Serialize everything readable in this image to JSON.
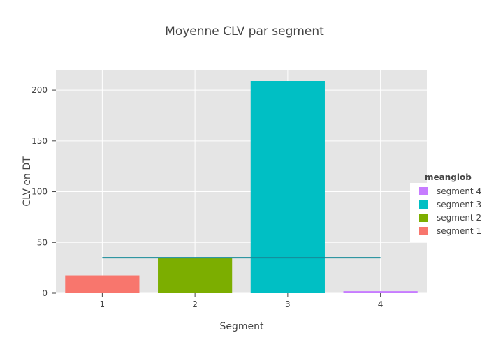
{
  "chart_data": {
    "type": "bar",
    "title": "Moyenne CLV par segment",
    "xlabel": "Segment",
    "ylabel": "CLV en DT",
    "categories": [
      "1",
      "2",
      "3",
      "4"
    ],
    "yticks": [
      "0",
      "50",
      "100",
      "150",
      "200"
    ],
    "ylim": [
      0,
      220
    ],
    "grid": true,
    "series": [
      {
        "name": "segment 1",
        "category": "1",
        "value": 17.5,
        "color": "#F8766D"
      },
      {
        "name": "segment 2",
        "category": "2",
        "value": 35,
        "color": "#7CAE00"
      },
      {
        "name": "segment 3",
        "category": "3",
        "value": 209,
        "color": "#00BFC4"
      },
      {
        "name": "segment 4",
        "category": "4",
        "value": 2,
        "color": "#C77CFF"
      }
    ],
    "mean_line": {
      "value": 35,
      "color": "#168A99",
      "from_category": "1",
      "to_category": "4"
    },
    "legend": {
      "title": "meanglob",
      "placement": "right",
      "items": [
        "segment 4",
        "segment 3",
        "segment 2",
        "segment 1"
      ]
    }
  }
}
